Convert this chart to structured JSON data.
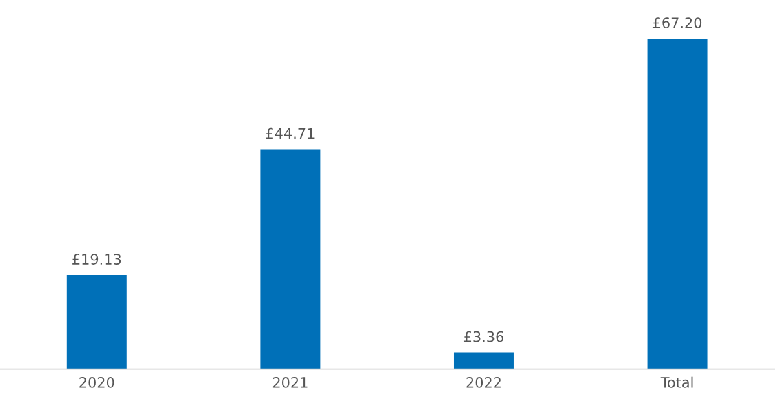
{
  "chart_data": {
    "type": "bar",
    "categories": [
      "2020",
      "2021",
      "2022",
      "Total"
    ],
    "values": [
      19.13,
      44.71,
      3.36,
      67.2
    ],
    "value_labels": [
      "£19.13",
      "£44.71",
      "£3.36",
      "£67.20"
    ],
    "color": "#0070b8"
  }
}
